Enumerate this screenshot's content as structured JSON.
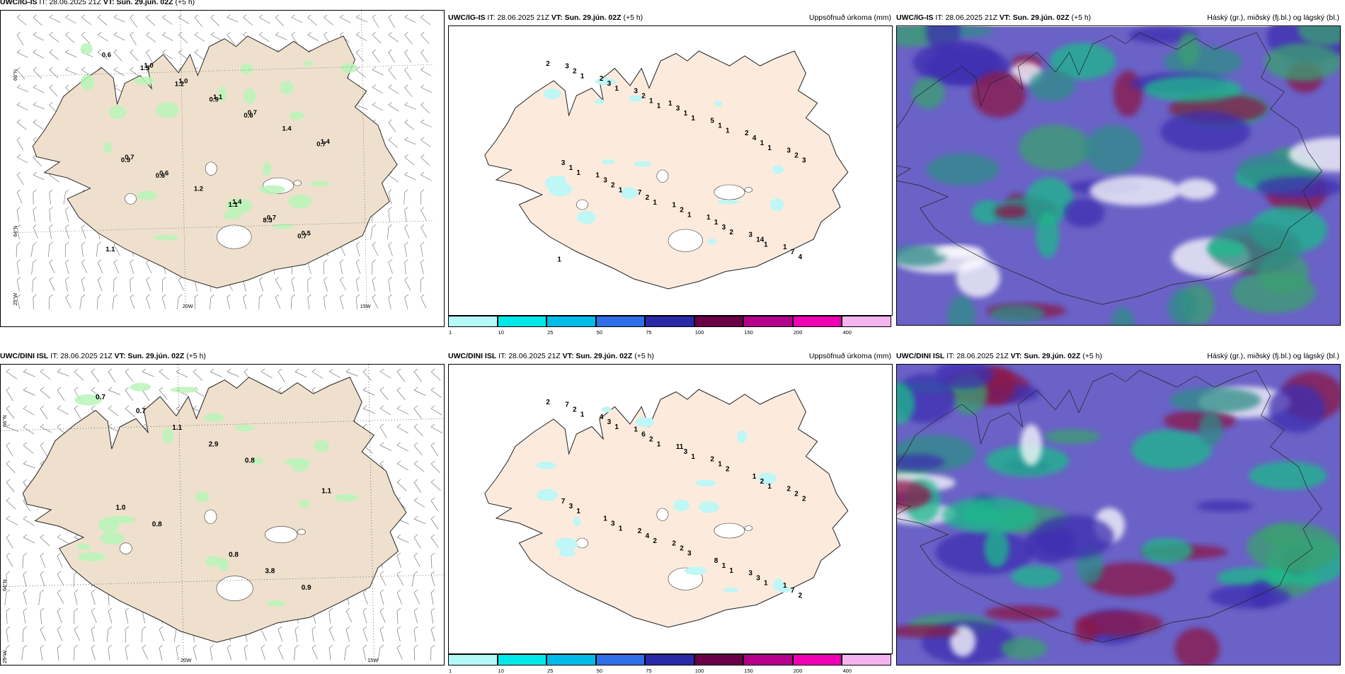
{
  "panels": [
    {
      "model": "UWC/IG-IS",
      "it_label": "IT:",
      "it": "28.06.2025 21Z",
      "vt_label": "VT:",
      "vt": "Sun. 29.jún. 02Z",
      "lead": "(+5 h)",
      "right_title": ""
    },
    {
      "model": "UWC/IG-IS",
      "it_label": "IT:",
      "it": "28.06.2025 21Z",
      "vt_label": "VT:",
      "vt": "Sun. 29.jún. 02Z",
      "lead": "(+5 h)",
      "right_title": "Uppsöfnuð úrkoma (mm)"
    },
    {
      "model": "UWC/IG-IS",
      "it_label": "IT:",
      "it": "28.06.2025 21Z",
      "vt_label": "VT:",
      "vt": "Sun. 29.jún. 02Z",
      "lead": "(+5 h)",
      "right_title": "Háský (gr.), miðský (fj.bl.) og lágský (bl.)"
    },
    {
      "model": "UWC/DINI ISL",
      "it_label": "IT:",
      "it": "28.06.2025 21Z",
      "vt_label": "VT:",
      "vt": "Sun. 29.jún. 02Z",
      "lead": "(+5 h)",
      "right_title": ""
    },
    {
      "model": "UWC/DINI ISL",
      "it_label": "IT:",
      "it": "28.06.2025 21Z",
      "vt_label": "VT:",
      "vt": "Sun. 29.jún. 02Z",
      "lead": "(+5 h)",
      "right_title": "Uppsöfnuð úrkoma (mm)"
    },
    {
      "model": "UWC/DINI ISL",
      "it_label": "IT:",
      "it": "28.06.2025 21Z",
      "vt_label": "VT:",
      "vt": "Sun. 29.jún. 02Z",
      "lead": "(+5 h)",
      "right_title": "Háský (gr.), miðský (fj.bl.) og lágský (bl.)"
    }
  ],
  "grid_labels": {
    "lat_66": "66°N",
    "lat_64": "64°N",
    "lon_25": "25°W",
    "lon_20": "20W",
    "lon_15": "15W"
  },
  "legend": {
    "colors": [
      "#b4f8f8",
      "#00e8e8",
      "#00bce8",
      "#2e6ee8",
      "#2a2aa8",
      "#6a0046",
      "#b4008a",
      "#f000b4",
      "#f4b4f0"
    ],
    "ticks": [
      "1",
      "10",
      "25",
      "50",
      "75",
      "100",
      "150",
      "200",
      "400"
    ]
  },
  "wind_precip_top": [
    "0.6",
    "0.6",
    "0.6",
    "0.7",
    "0.9",
    "0.9",
    "8.3",
    "1.2",
    "0.7",
    "1.1",
    "1.5",
    "1.4",
    "1.2",
    "1.1",
    "0.7",
    "0.6",
    "0.5",
    "1.1",
    "0.7",
    "0.7",
    "1.0",
    "1.4",
    "1.4",
    "1.0"
  ],
  "wind_precip_bottom": [
    "0.7",
    "0.8",
    "0.8",
    "0.9",
    "2.9",
    "1.0",
    "3.8",
    "1.1",
    "1.1",
    "0.8",
    "0.7"
  ],
  "accum_top": [
    "2",
    "1",
    "1",
    "1",
    "2",
    "1",
    "1",
    "3",
    "1",
    "1",
    "1",
    "1",
    "1",
    "1",
    "4",
    "1",
    "1",
    "2",
    "3",
    "2",
    "1",
    "2",
    "2",
    "14",
    "3",
    "1",
    "1",
    "2",
    "7",
    "2",
    "4",
    "3",
    "1",
    "3",
    "3",
    "3",
    "7",
    "3",
    "2",
    "5",
    "3",
    "1",
    "1",
    "3",
    "2",
    "1",
    "1",
    "1",
    "1"
  ],
  "accum_bottom": [
    "2",
    "1",
    "1",
    "1",
    "1",
    "1",
    "1",
    "2",
    "2",
    "1",
    "1",
    "2",
    "1",
    "3",
    "2",
    "2",
    "2",
    "3",
    "1",
    "2",
    "3",
    "2",
    "4",
    "3",
    "3",
    "1",
    "3",
    "2",
    "7",
    "6",
    "1",
    "1",
    "8",
    "7",
    "11",
    "2",
    "2",
    "3",
    "4",
    "2",
    "7",
    "2",
    "1",
    "1"
  ]
}
